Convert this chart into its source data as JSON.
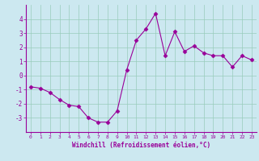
{
  "x": [
    0,
    1,
    2,
    3,
    4,
    5,
    6,
    7,
    8,
    9,
    10,
    11,
    12,
    13,
    14,
    15,
    16,
    17,
    18,
    19,
    20,
    21,
    22,
    23
  ],
  "y": [
    -0.8,
    -0.9,
    -1.2,
    -1.7,
    -2.1,
    -2.2,
    -3.0,
    -3.3,
    -3.3,
    -2.5,
    0.4,
    2.5,
    3.3,
    4.4,
    1.4,
    3.1,
    1.7,
    2.1,
    1.6,
    1.4,
    1.4,
    0.6,
    1.4,
    1.1
  ],
  "line_color": "#990099",
  "marker": "D",
  "marker_size": 2.5,
  "bg_color": "#cce8f0",
  "grid_color": "#99ccbb",
  "xlabel": "Windchill (Refroidissement éolien,°C)",
  "ylim": [
    -4,
    5
  ],
  "xlim": [
    -0.5,
    23.5
  ],
  "yticks": [
    -3,
    -2,
    -1,
    0,
    1,
    2,
    3,
    4
  ],
  "tick_color": "#990099",
  "label_color": "#990099",
  "font": "monospace"
}
